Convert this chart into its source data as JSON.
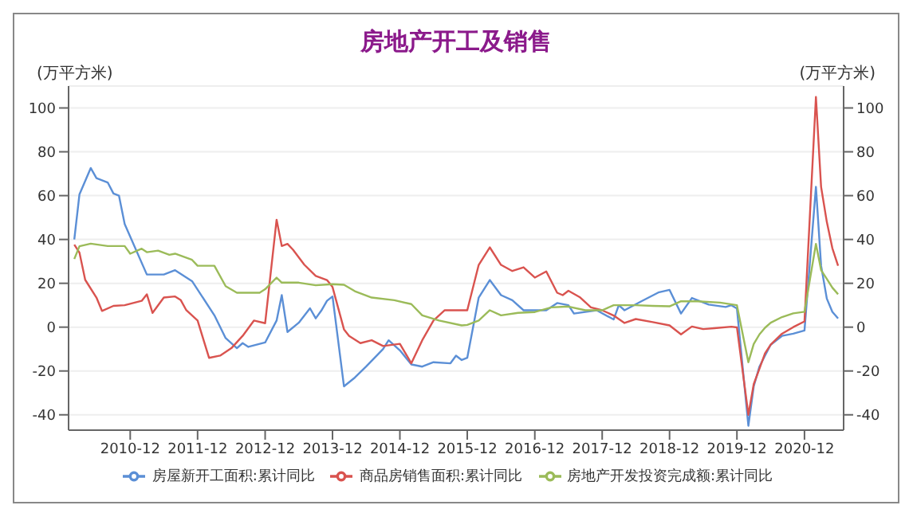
{
  "chart_data": {
    "type": "line",
    "title": "房地产开工及销售",
    "ylabel": "(万平方米)",
    "y2label": "(万平方米)",
    "xlim": [
      "2010-01",
      "2021-07"
    ],
    "xticks": [
      "2010-12",
      "2011-12",
      "2012-12",
      "2013-12",
      "2014-12",
      "2015-12",
      "2016-12",
      "2017-12",
      "2018-12",
      "2019-12",
      "2020-12"
    ],
    "ylim": [
      -47,
      110
    ],
    "yticks": [
      -40,
      -20,
      0,
      20,
      40,
      60,
      80,
      100
    ],
    "y2lim": [
      -47,
      110
    ],
    "y2ticks": [
      -40,
      -20,
      0,
      20,
      40,
      60,
      80,
      100
    ],
    "grid": "y",
    "legend": "bottom",
    "marker": "none",
    "line_style": "solid",
    "series": [
      {
        "name": "房屋新开工面积:累计同比",
        "color": "#5b8fd6",
        "x": [
          "2010-02",
          "2010-03",
          "2010-05",
          "2010-06",
          "2010-08",
          "2010-09",
          "2010-10",
          "2010-11",
          "2011-03",
          "2011-06",
          "2011-08",
          "2011-11",
          "2012-03",
          "2012-05",
          "2012-07",
          "2012-08",
          "2012-09",
          "2012-12",
          "2013-02",
          "2013-03",
          "2013-04",
          "2013-06",
          "2013-08",
          "2013-09",
          "2013-10",
          "2013-11",
          "2013-12",
          "2014-02",
          "2014-04",
          "2014-06",
          "2014-09",
          "2014-10",
          "2014-12",
          "2015-02",
          "2015-04",
          "2015-06",
          "2015-09",
          "2015-10",
          "2015-11",
          "2015-12",
          "2016-02",
          "2016-04",
          "2016-06",
          "2016-08",
          "2016-10",
          "2017-02",
          "2017-04",
          "2017-06",
          "2017-07",
          "2017-11",
          "2018-02",
          "2018-03",
          "2018-04",
          "2018-07",
          "2018-10",
          "2018-12",
          "2019-02",
          "2019-04",
          "2019-07",
          "2019-10",
          "2019-11",
          "2019-12",
          "2020-02",
          "2020-03",
          "2020-04",
          "2020-05",
          "2020-06",
          "2020-08",
          "2020-10",
          "2020-12",
          "2021-02",
          "2021-03",
          "2021-04",
          "2021-05",
          "2021-06"
        ],
        "values": [
          40,
          60.6,
          72.6,
          68,
          66,
          61,
          60,
          47,
          24,
          24,
          26,
          21,
          5.4,
          -5,
          -9.6,
          -7.3,
          -9,
          -7,
          3,
          14.6,
          -2.2,
          2,
          8.6,
          4,
          7.5,
          12,
          14,
          -27,
          -23,
          -18,
          -10,
          -6,
          -10.6,
          -17,
          -18,
          -16,
          -16.5,
          -13,
          -15,
          -14,
          13.5,
          21.5,
          14.6,
          12.3,
          7.7,
          7.7,
          11,
          10,
          6.2,
          7.7,
          3.5,
          10,
          7.7,
          11.8,
          15.8,
          17,
          6.2,
          13.3,
          10.3,
          9.2,
          10,
          8.5,
          -45,
          -27,
          -18,
          -13,
          -8,
          -4,
          -3,
          -1.5,
          64,
          28,
          13,
          7,
          4
        ]
      },
      {
        "name": "商品房销售面积:累计同比",
        "color": "#d9534f",
        "x": [
          "2010-02",
          "2010-03",
          "2010-04",
          "2010-06",
          "2010-07",
          "2010-09",
          "2010-11",
          "2011-02",
          "2011-03",
          "2011-04",
          "2011-06",
          "2011-08",
          "2011-09",
          "2011-10",
          "2011-12",
          "2012-02",
          "2012-04",
          "2012-06",
          "2012-08",
          "2012-10",
          "2012-12",
          "2013-02",
          "2013-03",
          "2013-04",
          "2013-05",
          "2013-07",
          "2013-09",
          "2013-11",
          "2013-12",
          "2014-02",
          "2014-03",
          "2014-05",
          "2014-07",
          "2014-09",
          "2014-12",
          "2015-02",
          "2015-04",
          "2015-06",
          "2015-08",
          "2015-12",
          "2016-02",
          "2016-04",
          "2016-06",
          "2016-08",
          "2016-10",
          "2016-12",
          "2017-02",
          "2017-04",
          "2017-05",
          "2017-06",
          "2017-08",
          "2017-10",
          "2017-12",
          "2018-02",
          "2018-04",
          "2018-06",
          "2018-09",
          "2018-12",
          "2019-02",
          "2019-04",
          "2019-06",
          "2019-08",
          "2019-11",
          "2019-12",
          "2020-02",
          "2020-03",
          "2020-04",
          "2020-05",
          "2020-06",
          "2020-08",
          "2020-10",
          "2020-12",
          "2021-02",
          "2021-03",
          "2021-04",
          "2021-05",
          "2021-06"
        ],
        "values": [
          37.6,
          34,
          21.6,
          13.5,
          7.4,
          9.7,
          10,
          12,
          15,
          6.5,
          13.5,
          14,
          12.3,
          7.7,
          3,
          -14,
          -13,
          -9.6,
          -4,
          3,
          1.8,
          49,
          37,
          38,
          35.3,
          28.5,
          23.4,
          21.5,
          18.3,
          -1,
          -4,
          -7.3,
          -6,
          -8.6,
          -7.6,
          -16.5,
          -6,
          3,
          7.7,
          7.7,
          28.4,
          36.4,
          28.4,
          25.6,
          27.3,
          22.6,
          25.4,
          15.7,
          14.6,
          16.6,
          13.7,
          9,
          7.7,
          5.3,
          1.9,
          3.7,
          2.3,
          0.8,
          -3.3,
          0.3,
          -0.9,
          -0.5,
          0.2,
          -0.1,
          -40,
          -26,
          -19,
          -12,
          -8,
          -3,
          0,
          2.6,
          105,
          64,
          48,
          36,
          28
        ]
      },
      {
        "name": "房地产开发投资完成额:累计同比",
        "color": "#9bbb59",
        "x": [
          "2010-02",
          "2010-03",
          "2010-05",
          "2010-08",
          "2010-11",
          "2010-12",
          "2011-02",
          "2011-03",
          "2011-05",
          "2011-07",
          "2011-08",
          "2011-11",
          "2011-12",
          "2012-03",
          "2012-05",
          "2012-07",
          "2012-11",
          "2012-12",
          "2013-02",
          "2013-03",
          "2013-06",
          "2013-09",
          "2013-12",
          "2014-02",
          "2014-04",
          "2014-07",
          "2014-11",
          "2015-02",
          "2015-04",
          "2015-07",
          "2015-11",
          "2015-12",
          "2016-02",
          "2016-04",
          "2016-06",
          "2016-09",
          "2016-12",
          "2017-03",
          "2017-06",
          "2017-09",
          "2017-12",
          "2018-02",
          "2018-06",
          "2018-09",
          "2018-12",
          "2019-02",
          "2019-05",
          "2019-09",
          "2019-12",
          "2020-02",
          "2020-03",
          "2020-04",
          "2020-05",
          "2020-06",
          "2020-08",
          "2020-10",
          "2020-12",
          "2021-02",
          "2021-03",
          "2021-04",
          "2021-05",
          "2021-06"
        ],
        "values": [
          31.1,
          36.9,
          38.1,
          37,
          37,
          33.5,
          35.8,
          34.2,
          34.9,
          33,
          33.5,
          30.7,
          28,
          28,
          18.7,
          15.7,
          15.7,
          17.3,
          22.6,
          20.3,
          20.3,
          19.1,
          19.6,
          19.3,
          16.4,
          13.5,
          12.3,
          10.5,
          5.4,
          3,
          0.8,
          1,
          3,
          7.7,
          5.4,
          6.5,
          6.9,
          9,
          9.4,
          7.7,
          7.7,
          10,
          10,
          9.7,
          9.5,
          11.8,
          11.8,
          11.2,
          10,
          -16,
          -7.7,
          -3.3,
          -0.3,
          2,
          4.6,
          6.3,
          7,
          38,
          26,
          22,
          18,
          15
        ]
      }
    ]
  }
}
